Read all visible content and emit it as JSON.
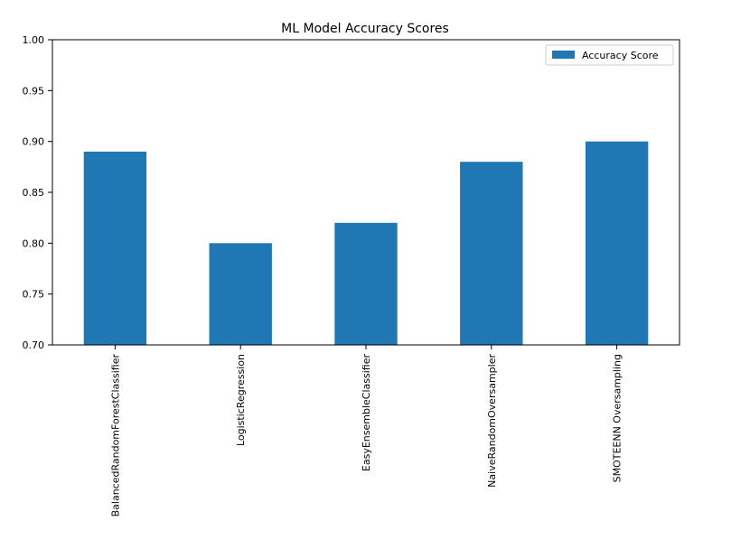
{
  "chart_data": {
    "type": "bar",
    "title": "ML Model Accuracy Scores",
    "xlabel": "",
    "ylabel": "",
    "categories": [
      "BalancedRandomForestClassifier",
      "LogisticRegression",
      "EasyEnsembleClassifier",
      "NaiveRandomOversampler",
      "SMOTEENN Oversampling"
    ],
    "series": [
      {
        "name": "Accuracy Score",
        "values": [
          0.89,
          0.8,
          0.82,
          0.88,
          0.9
        ],
        "color": "#1f77b4"
      }
    ],
    "ylim": [
      0.7,
      1.0
    ],
    "yticks": [
      "0.70",
      "0.75",
      "0.80",
      "0.85",
      "0.90",
      "0.95",
      "1.00"
    ],
    "grid": false,
    "legend_position": "top-right",
    "x_tick_rotation": "vertical"
  }
}
